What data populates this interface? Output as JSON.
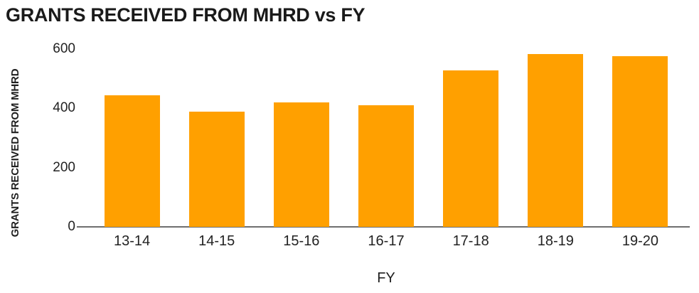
{
  "chart_data": {
    "type": "bar",
    "title": "GRANTS RECEIVED FROM MHRD vs FY",
    "xlabel": "FY",
    "ylabel": "GRANTS RECEIVED FROM MHRD",
    "categories": [
      "13-14",
      "14-15",
      "15-16",
      "16-17",
      "17-18",
      "18-19",
      "19-20"
    ],
    "values": [
      445,
      390,
      421,
      410,
      527,
      583,
      577
    ],
    "y_ticks": [
      0,
      200,
      400,
      600
    ],
    "ylim": [
      0,
      600
    ],
    "grid": false,
    "legend": false,
    "colors": {
      "bar": "#FFA000",
      "axis_line": "#6E6E6E",
      "text": "#1F1F1F",
      "background": "#FFFFFF"
    }
  }
}
